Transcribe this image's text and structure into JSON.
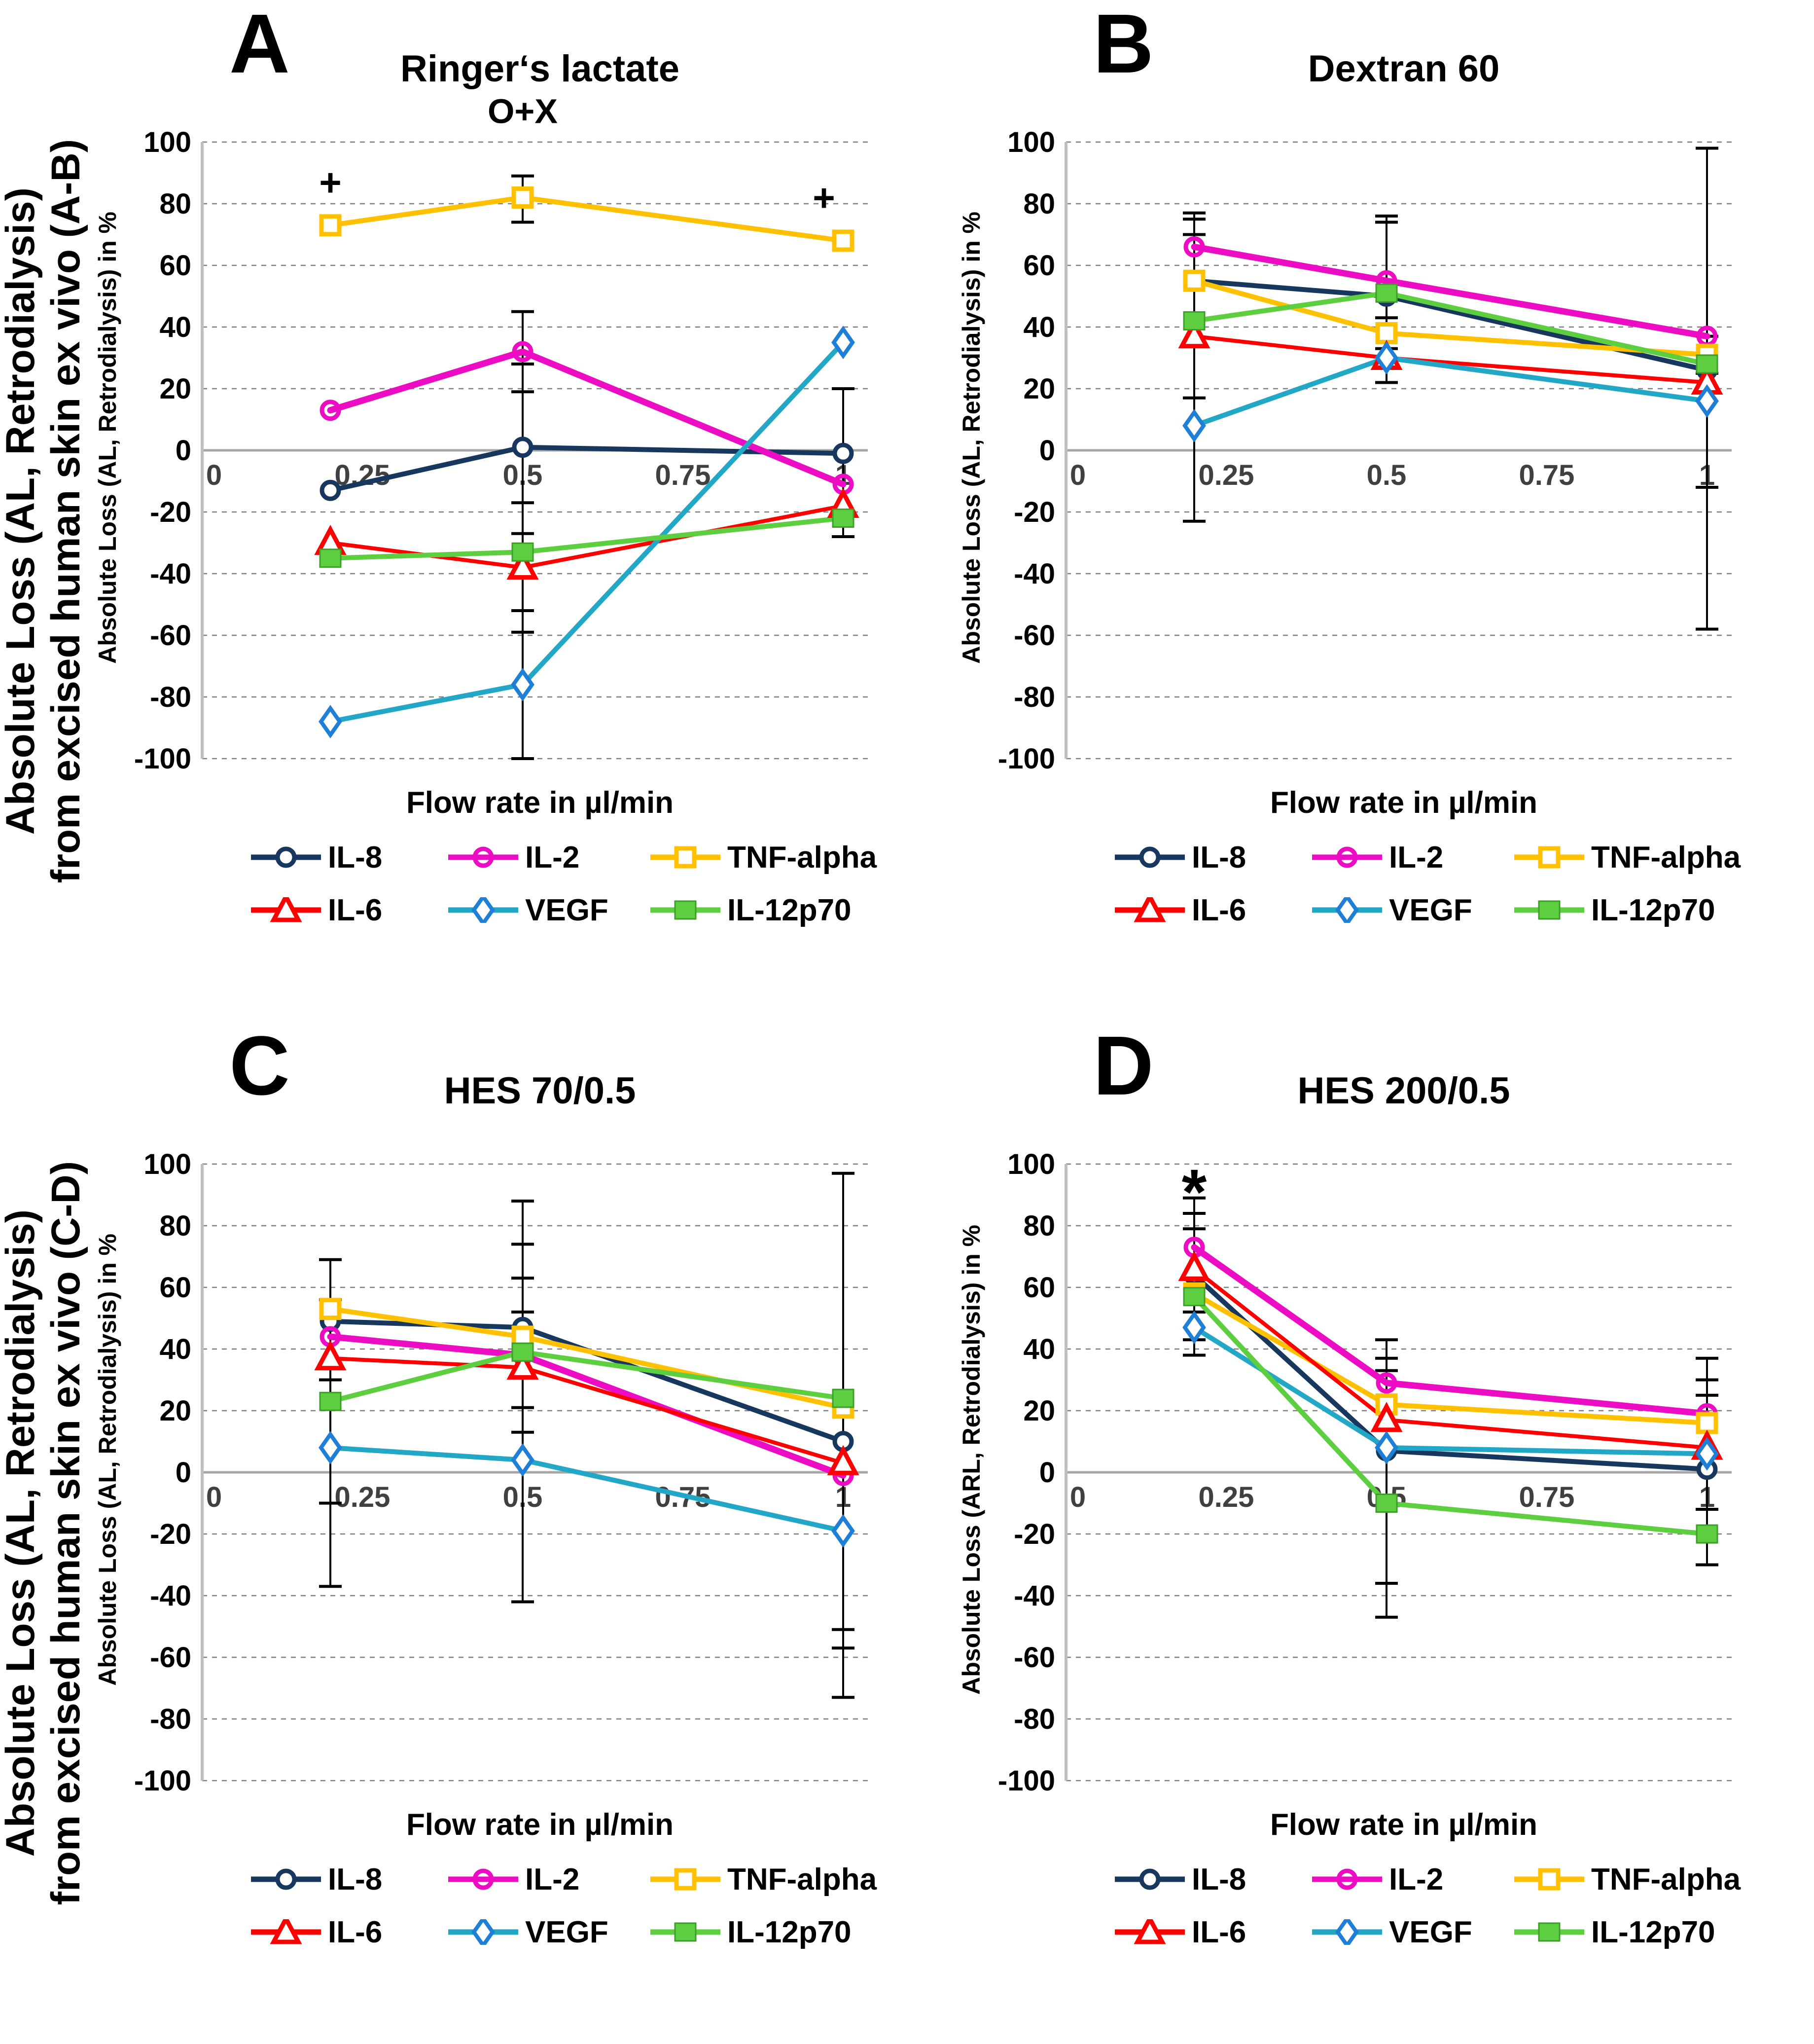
{
  "figure": {
    "background": "#FFFFFF",
    "rows": [
      {
        "label_line1": "Absolute Loss (AL, Retrodialysis)",
        "label_line2": "from excised human skin ex vivo (A-B)"
      },
      {
        "label_line1": "Absolute Loss (AL, Retrodialysis)",
        "label_line2": "from excised human skin ex vivo (C-D)"
      }
    ],
    "series_styles": [
      {
        "name": "IL-8",
        "color": "#17375E",
        "marker": "circle",
        "marker_fill": "white",
        "marker_stroke": "#17375E",
        "line_width": 10
      },
      {
        "name": "IL-2",
        "color": "#EC0CC3",
        "marker": "circle-open",
        "marker_fill": "none",
        "marker_stroke": "#EC0CC3",
        "line_width": 13
      },
      {
        "name": "TNF-alpha",
        "color": "#FFC000",
        "marker": "square",
        "marker_fill": "white",
        "marker_stroke": "#FFC000",
        "line_width": 10
      },
      {
        "name": "IL-6",
        "color": "#FF0000",
        "marker": "triangle",
        "marker_fill": "white",
        "marker_stroke": "#FF0000",
        "line_width": 8
      },
      {
        "name": "VEGF",
        "color": "#22A7C6",
        "marker": "diamond",
        "marker_fill": "white",
        "marker_stroke": "#1F7FD6",
        "line_width": 10
      },
      {
        "name": "IL-12p70",
        "color": "#5DCE3F",
        "marker": "square-filled",
        "marker_fill": "#5DCE3F",
        "marker_stroke": "#3D9E2A",
        "line_width": 10
      }
    ],
    "legend_rows": [
      [
        "IL-8",
        "IL-2",
        "TNF-alpha"
      ],
      [
        "IL-6",
        "VEGF",
        "IL-12p70"
      ]
    ],
    "grid_color": "#808080",
    "zero_line_color": "#A6A6A6",
    "axis_color": "#BFBFBF",
    "error_bar_color": "#000000",
    "x_tick_color": "#404040",
    "x_ticks": [
      {
        "value": 0,
        "label": "0"
      },
      {
        "value": 0.25,
        "label": "0.25"
      },
      {
        "value": 0.5,
        "label": "0.5"
      },
      {
        "value": 0.75,
        "label": "0.75"
      },
      {
        "value": 1,
        "label": "1"
      }
    ],
    "y_ticks": [
      100,
      80,
      60,
      40,
      20,
      0,
      -20,
      -40,
      -60,
      -80,
      -100
    ]
  },
  "chart_data": [
    {
      "panel": "A",
      "type": "line",
      "title": "Ringer‘s lactate",
      "xlabel": "Flow rate in µl/min",
      "ylabel": "Absolute Loss (AL, Retrodialysis) in %",
      "xlim": [
        0,
        1.08
      ],
      "ylim": [
        -100,
        100
      ],
      "x": [
        0.2,
        0.5,
        1
      ],
      "series": [
        {
          "name": "IL-8",
          "values": [
            -13,
            1,
            -1
          ]
        },
        {
          "name": "IL-2",
          "values": [
            13,
            32,
            -11
          ]
        },
        {
          "name": "TNF-alpha",
          "values": [
            73,
            82,
            68
          ]
        },
        {
          "name": "IL-6",
          "values": [
            -30,
            -38,
            -18
          ]
        },
        {
          "name": "VEGF",
          "values": [
            -88,
            -76,
            35
          ]
        },
        {
          "name": "IL-12p70",
          "values": [
            -35,
            -33,
            -22
          ]
        }
      ],
      "error_bars": [
        {
          "x": 0.5,
          "low": 74,
          "high": 89,
          "caps": []
        },
        {
          "x": 0.5,
          "low": -100,
          "high": 45,
          "caps": [
            28,
            19,
            -17,
            -27,
            -52,
            -59
          ]
        },
        {
          "x": 1,
          "low": -28,
          "high": 20,
          "caps": []
        }
      ],
      "annotations": [
        {
          "text": "+",
          "x": 0.2,
          "y": 87,
          "size": 78
        },
        {
          "text": "O+X",
          "x": 0.5,
          "y": 110,
          "size": 70
        },
        {
          "text": "+",
          "x": 0.97,
          "y": 82,
          "size": 78
        }
      ]
    },
    {
      "panel": "B",
      "type": "line",
      "title": "Dextran 60",
      "xlabel": "Flow rate in µl/min",
      "ylabel": "Absolute Loss (AL, Retrodialysis) in %",
      "xlim": [
        0,
        1.08
      ],
      "ylim": [
        -100,
        100
      ],
      "x": [
        0.2,
        0.5,
        1
      ],
      "series": [
        {
          "name": "IL-8",
          "values": [
            55,
            50,
            26
          ]
        },
        {
          "name": "IL-2",
          "values": [
            66,
            55,
            37
          ]
        },
        {
          "name": "TNF-alpha",
          "values": [
            55,
            38,
            31
          ]
        },
        {
          "name": "IL-6",
          "values": [
            37,
            30,
            22
          ]
        },
        {
          "name": "VEGF",
          "values": [
            8,
            30,
            16
          ]
        },
        {
          "name": "IL-12p70",
          "values": [
            42,
            51,
            28
          ]
        }
      ],
      "error_bars": [
        {
          "x": 0.2,
          "low": -23,
          "high": 77,
          "caps": [
            75,
            70,
            17
          ]
        },
        {
          "x": 0.5,
          "low": 22,
          "high": 76,
          "caps": [
            74,
            43,
            33,
            28
          ]
        },
        {
          "x": 1,
          "low": -58,
          "high": 98,
          "caps": [
            37,
            25,
            -12
          ]
        }
      ],
      "annotations": []
    },
    {
      "panel": "C",
      "type": "line",
      "title": "HES 70/0.5",
      "xlabel": "Flow rate in µl/min",
      "ylabel": "Absolute Loss (AL, Retrodialysis) in %",
      "xlim": [
        0,
        1.08
      ],
      "ylim": [
        -100,
        100
      ],
      "x": [
        0.2,
        0.5,
        1
      ],
      "series": [
        {
          "name": "IL-8",
          "values": [
            49,
            47,
            10
          ]
        },
        {
          "name": "IL-2",
          "values": [
            44,
            38,
            -1
          ]
        },
        {
          "name": "TNF-alpha",
          "values": [
            53,
            44,
            21
          ]
        },
        {
          "name": "IL-6",
          "values": [
            37,
            34,
            3
          ]
        },
        {
          "name": "VEGF",
          "values": [
            8,
            4,
            -19
          ]
        },
        {
          "name": "IL-12p70",
          "values": [
            23,
            39,
            24
          ]
        }
      ],
      "error_bars": [
        {
          "x": 0.2,
          "low": -37,
          "high": 69,
          "caps": [
            56,
            30,
            -10
          ]
        },
        {
          "x": 0.5,
          "low": -42,
          "high": 88,
          "caps": [
            74,
            63,
            52,
            21,
            13
          ]
        },
        {
          "x": 1,
          "low": -73,
          "high": 97,
          "caps": [
            -51,
            -57
          ]
        }
      ],
      "annotations": []
    },
    {
      "panel": "D",
      "type": "line",
      "title": "HES 200/0.5",
      "xlabel": "Flow rate in µl/min",
      "ylabel": "Absolute Loss (ARL, Retrodialysis) in %",
      "xlim": [
        0,
        1.08
      ],
      "ylim": [
        -100,
        100
      ],
      "x": [
        0.2,
        0.5,
        1
      ],
      "series": [
        {
          "name": "IL-8",
          "values": [
            64,
            7,
            1
          ]
        },
        {
          "name": "IL-2",
          "values": [
            73,
            29,
            19
          ]
        },
        {
          "name": "TNF-alpha",
          "values": [
            58,
            22,
            16
          ]
        },
        {
          "name": "IL-6",
          "values": [
            66,
            17,
            8
          ]
        },
        {
          "name": "VEGF",
          "values": [
            47,
            8,
            6
          ]
        },
        {
          "name": "IL-12p70",
          "values": [
            57,
            -10,
            -20
          ]
        }
      ],
      "error_bars": [
        {
          "x": 0.2,
          "low": 38,
          "high": 89,
          "caps": [
            84,
            79,
            52,
            43
          ]
        },
        {
          "x": 0.5,
          "low": -47,
          "high": 43,
          "caps": [
            37,
            33,
            -36
          ]
        },
        {
          "x": 1,
          "low": -30,
          "high": 37,
          "caps": [
            30,
            25,
            -12
          ]
        }
      ],
      "annotations": [
        {
          "text": "*",
          "x": 0.2,
          "y": 91,
          "size": 130
        }
      ]
    }
  ]
}
